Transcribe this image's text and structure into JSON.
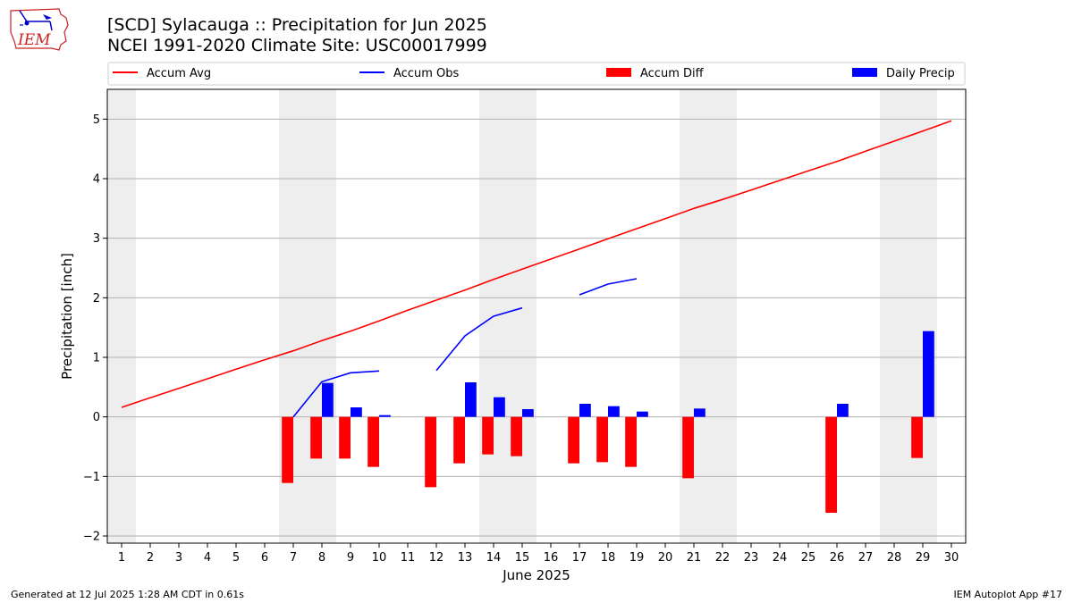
{
  "header": {
    "title_line1": "[SCD] Sylacauga :: Precipitation for Jun 2025",
    "title_line2": "NCEI 1991-2020 Climate Site: USC00017999",
    "logo_text": "IEM"
  },
  "footer": {
    "generated": "Generated at 12 Jul 2025 1:28 AM CDT in 0.61s",
    "app": "IEM Autoplot App #17"
  },
  "colors": {
    "accum_avg": "#ff0000",
    "accum_obs": "#0000ff",
    "accum_diff": "#ff0000",
    "daily_precip": "#0000ff",
    "weekend_shade": "#eeeeee",
    "grid": "#b0b0b0"
  },
  "chart_data": {
    "type": "bar",
    "xlabel": "June 2025",
    "ylabel": "Precipitation [inch]",
    "xlim": [
      0.5,
      30.5
    ],
    "ylim": [
      -2.12,
      5.5
    ],
    "yticks": [
      -2,
      -1,
      0,
      1,
      2,
      3,
      4,
      5
    ],
    "ytick_labels": [
      "−2",
      "−1",
      "0",
      "1",
      "2",
      "3",
      "4",
      "5"
    ],
    "days": [
      1,
      2,
      3,
      4,
      5,
      6,
      7,
      8,
      9,
      10,
      11,
      12,
      13,
      14,
      15,
      16,
      17,
      18,
      19,
      20,
      21,
      22,
      23,
      24,
      25,
      26,
      27,
      28,
      29,
      30
    ],
    "weekend_spans": [
      [
        0.5,
        1.5
      ],
      [
        6.5,
        8.5
      ],
      [
        13.5,
        15.5
      ],
      [
        20.5,
        22.5
      ],
      [
        27.5,
        29.5
      ]
    ],
    "grid": true,
    "legend_position": "top",
    "legend": {
      "accum_avg": "Accum Avg",
      "accum_obs": "Accum Obs",
      "accum_diff": "Accum Diff",
      "daily_precip": "Daily Precip"
    },
    "accum_avg": [
      0.16,
      0.32,
      0.48,
      0.64,
      0.8,
      0.96,
      1.11,
      1.28,
      1.44,
      1.61,
      1.79,
      1.96,
      2.13,
      2.31,
      2.48,
      2.65,
      2.82,
      2.99,
      3.16,
      3.33,
      3.5,
      3.65,
      3.81,
      3.97,
      4.13,
      4.29,
      4.46,
      4.63,
      4.8,
      4.97
    ],
    "accum_obs": [
      null,
      null,
      null,
      null,
      null,
      null,
      0.0,
      0.59,
      0.74,
      0.77,
      null,
      0.78,
      1.36,
      1.69,
      1.83,
      null,
      2.05,
      2.23,
      2.32,
      null,
      null,
      null,
      null,
      null,
      null,
      null,
      null,
      null,
      null,
      null
    ],
    "accum_diff": [
      null,
      null,
      null,
      null,
      null,
      null,
      -1.11,
      -0.7,
      -0.7,
      -0.84,
      null,
      -1.18,
      -0.78,
      -0.63,
      -0.66,
      null,
      -0.78,
      -0.76,
      -0.84,
      null,
      -1.03,
      null,
      null,
      null,
      null,
      -1.61,
      null,
      null,
      -0.69,
      null
    ],
    "daily_precip": [
      null,
      null,
      null,
      null,
      null,
      null,
      null,
      0.57,
      0.16,
      0.03,
      null,
      null,
      0.58,
      0.33,
      0.13,
      null,
      0.22,
      0.18,
      0.09,
      null,
      0.14,
      null,
      null,
      null,
      null,
      0.22,
      null,
      null,
      1.44,
      null
    ]
  }
}
